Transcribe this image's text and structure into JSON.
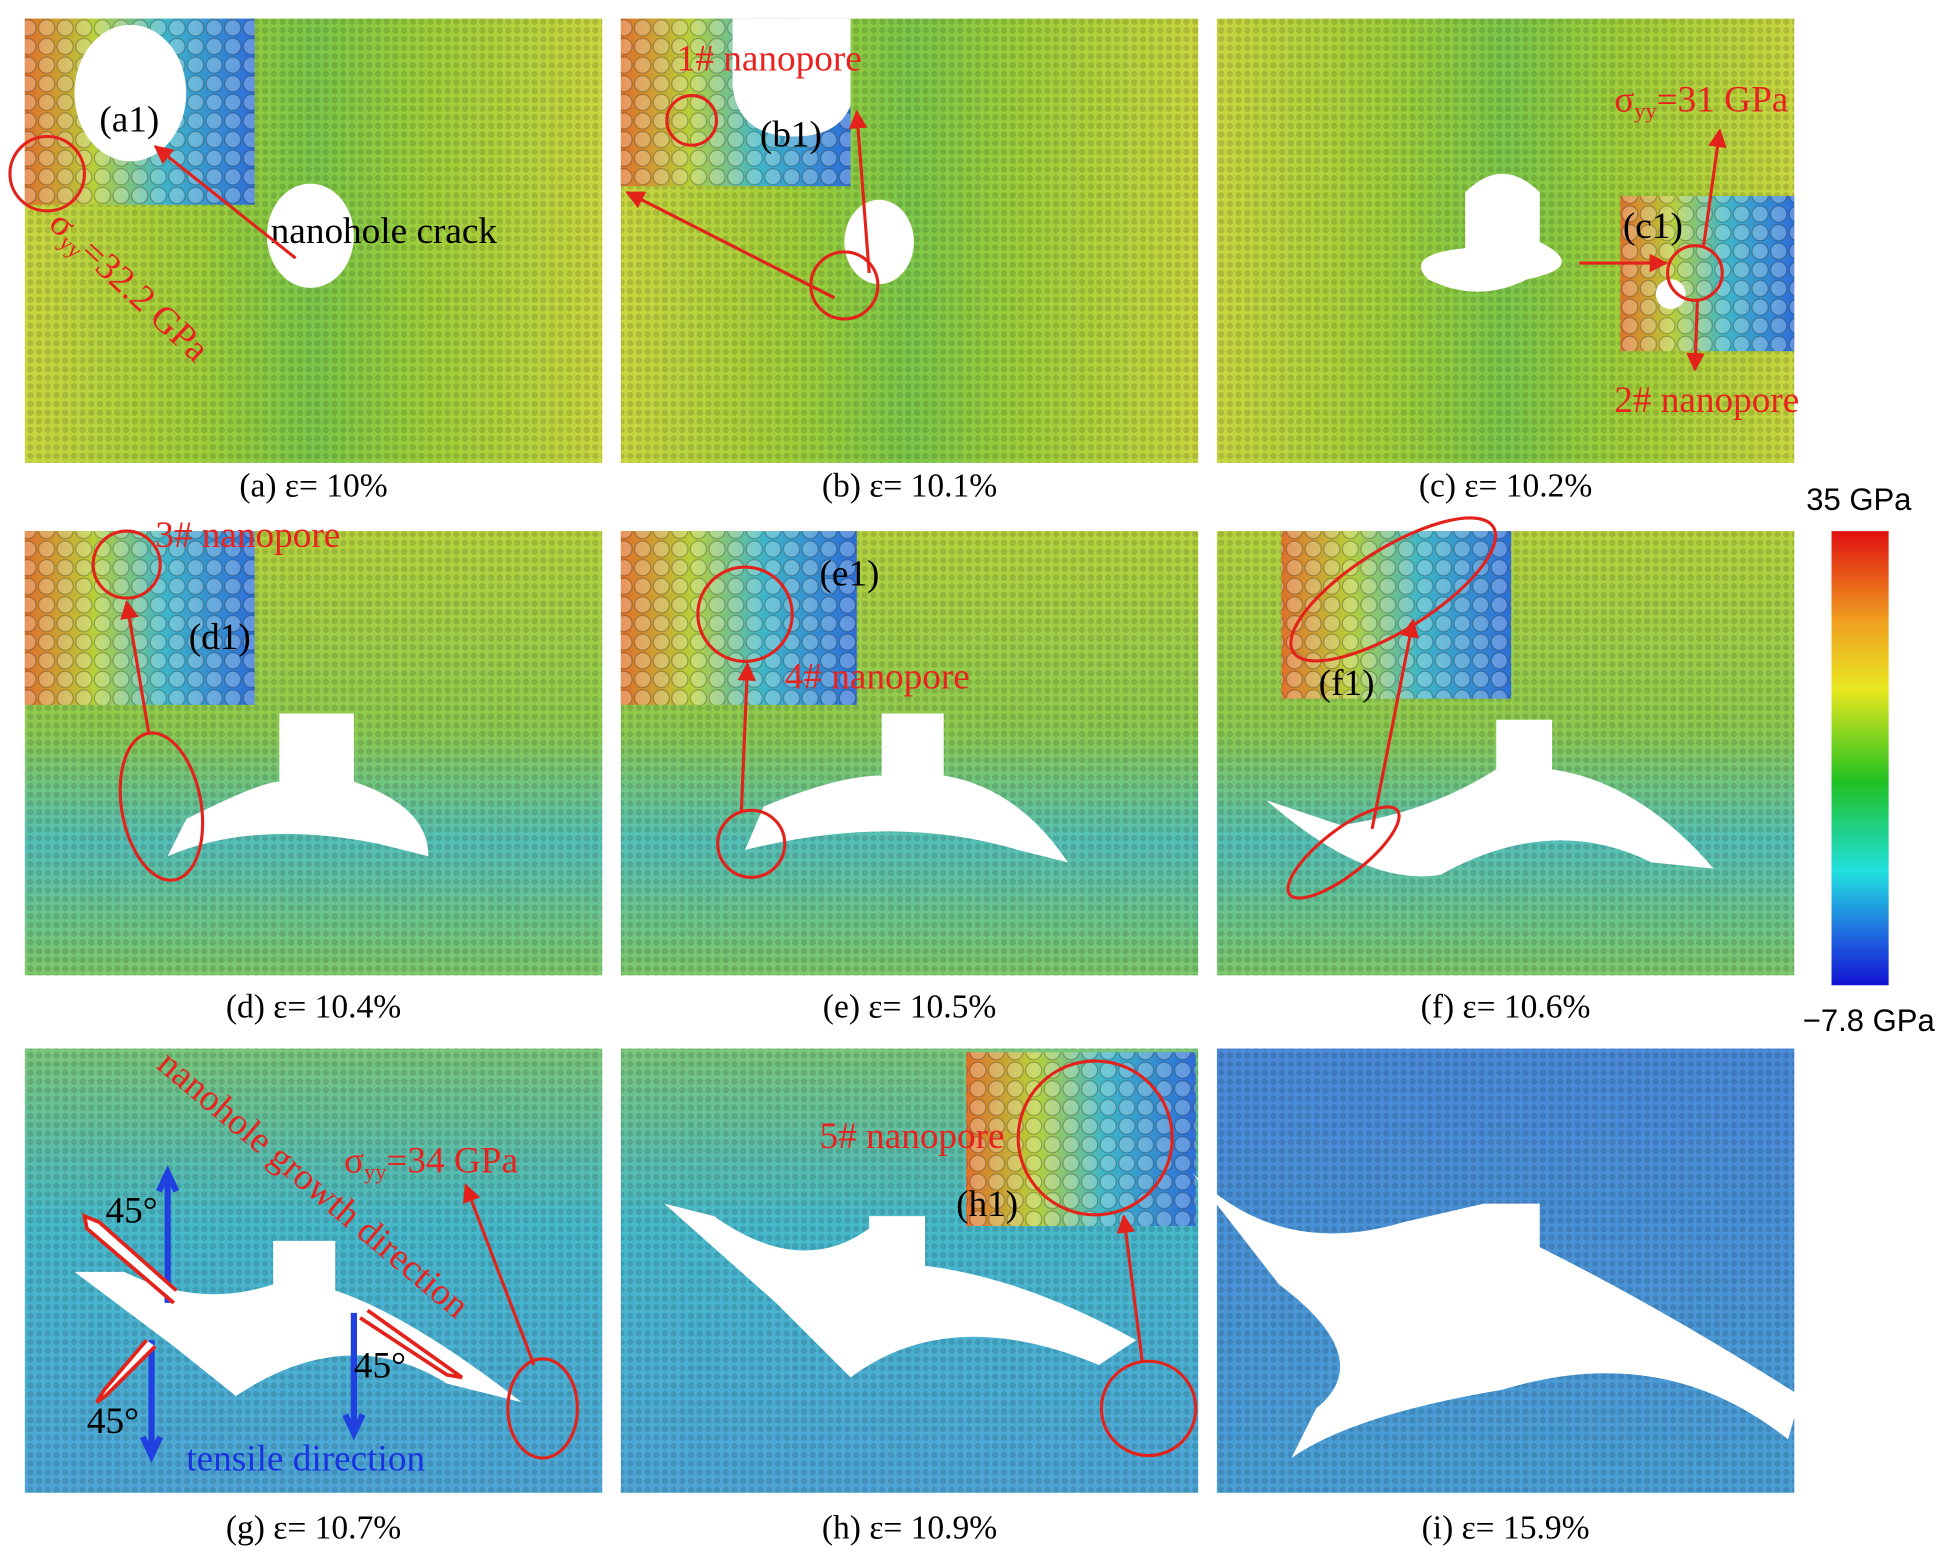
{
  "panels": [
    {
      "caption": "(a) ε= 10%",
      "inset": "(a1)",
      "note": "nanohole crack",
      "stress": {
        "symbol": "σ",
        "sub": "yy",
        "text": "=32.2 GPa"
      }
    },
    {
      "caption": "(b) ε= 10.1%",
      "inset": "(b1)",
      "note": "1# nanopore"
    },
    {
      "caption": "(c) ε= 10.2%",
      "inset": "(c1)",
      "note": "2# nanopore",
      "stress": {
        "symbol": "σ",
        "sub": "yy",
        "text": "=31 GPa"
      }
    },
    {
      "caption": "(d) ε= 10.4%",
      "inset": "(d1)",
      "note": "3# nanopore"
    },
    {
      "caption": "(e) ε= 10.5%",
      "inset": "(e1)",
      "note": "4# nanopore"
    },
    {
      "caption": "(f) ε= 10.6%",
      "inset": "(f1)"
    },
    {
      "caption": "(g) ε= 10.7%",
      "note": "nanohole growth direction",
      "stress": {
        "symbol": "σ",
        "sub": "yy",
        "text": "=34 GPa"
      },
      "angles": [
        "45°",
        "45°",
        "45°"
      ],
      "direction": "tensile direction"
    },
    {
      "caption": "(h) ε= 10.9%",
      "inset": "(h1)",
      "note": "5# nanopore"
    },
    {
      "caption": "(i) ε= 15.9%"
    }
  ],
  "colorbar": {
    "max": "35 GPa",
    "min": "−7.8 GPa"
  }
}
